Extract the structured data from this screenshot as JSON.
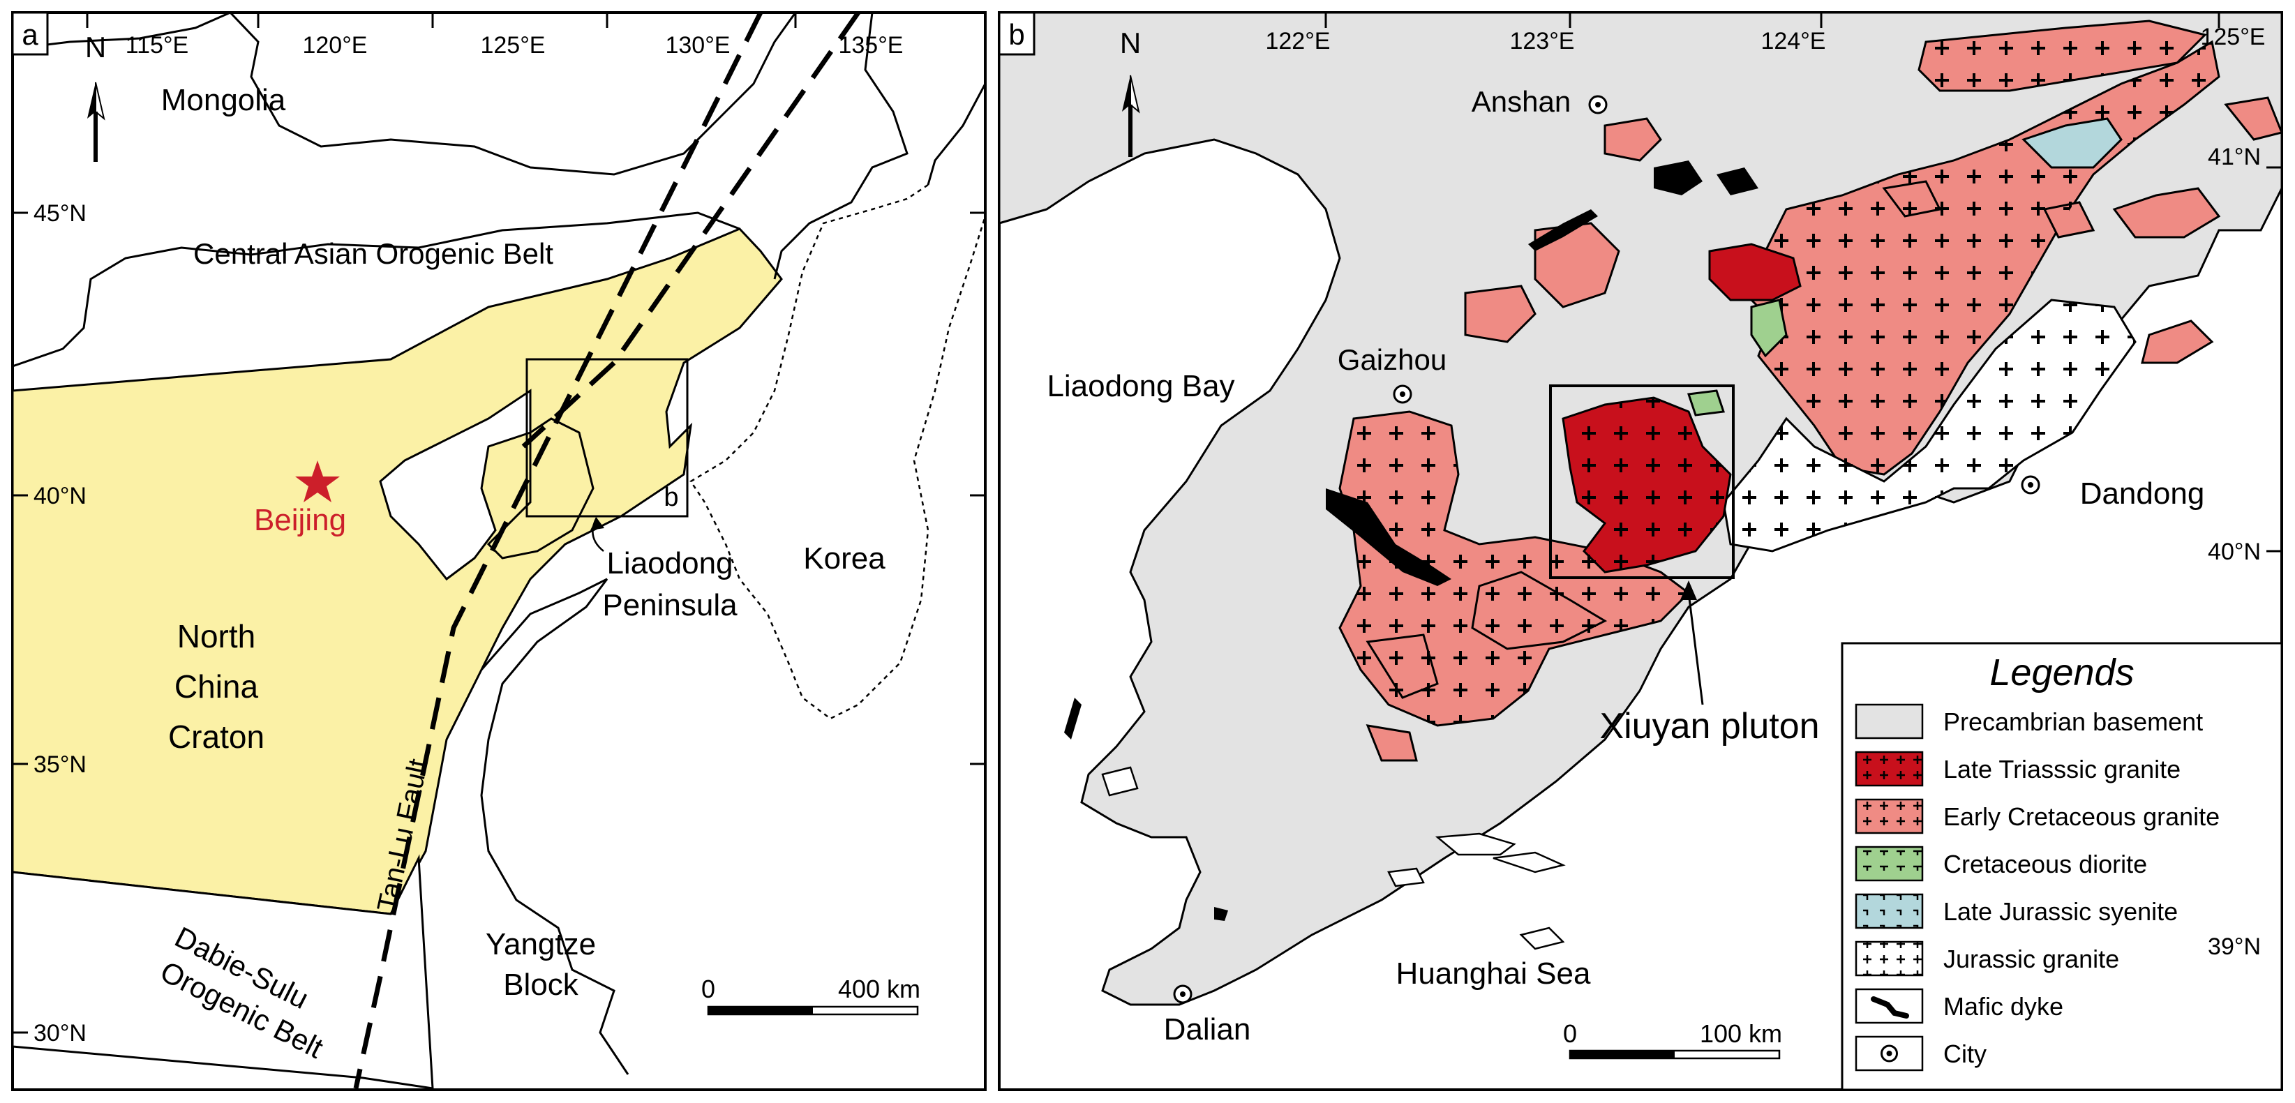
{
  "panel_a": {
    "letter": "a",
    "north": "N",
    "lon_labels": [
      "115°E",
      "120°E",
      "125°E",
      "130°E",
      "135°E"
    ],
    "lat_labels": [
      "45°N",
      "40°N",
      "35°N",
      "30°N"
    ],
    "regions": {
      "mongolia": "Mongolia",
      "caob": "Central Asian Orogenic Belt",
      "ncc_1": "North",
      "ncc_2": "China",
      "ncc_3": "Craton",
      "beijing": "Beijing",
      "liaodong_1": "Liaodong",
      "liaodong_2": "Peninsula",
      "korea": "Korea",
      "tanlu": "Tan-Lu Fault",
      "dabie_1": "Dabie-Sulu",
      "dabie_2": "Orogenic Belt",
      "yangtze_1": "Yangtze",
      "yangtze_2": "Block",
      "inset_box": "b"
    },
    "scale": {
      "start": "0",
      "end": "400 km"
    },
    "colors": {
      "ncc_fill": "#fbf1a6",
      "beijing_star": "#cc1f2a"
    }
  },
  "panel_b": {
    "letter": "b",
    "north": "N",
    "lon_labels": [
      "122°E",
      "123°E",
      "124°E",
      "125°E"
    ],
    "lat_labels": [
      "41°N",
      "40°N",
      "39°N"
    ],
    "places": {
      "anshan": "Anshan",
      "gaizhou": "Gaizhou",
      "dandong": "Dandong",
      "dalian": "Dalian",
      "liaodong_bay": "Liaodong Bay",
      "huanghai": "Huanghai Sea",
      "xiuyan": "Xiuyan pluton"
    },
    "scale": {
      "start": "0",
      "end": "100 km"
    },
    "legend": {
      "title": "Legends",
      "items": [
        {
          "label": "Precambrian basement",
          "color": "#e3e3e3",
          "pattern": "none"
        },
        {
          "label": "Late Triasssic granite",
          "color": "#c8101c",
          "pattern": "plus"
        },
        {
          "label": "Early Cretaceous granite",
          "color": "#ef8b84",
          "pattern": "plus"
        },
        {
          "label": "Cretaceous diorite",
          "color": "#9fd08f",
          "pattern": "tick"
        },
        {
          "label": "Late Jurassic syenite",
          "color": "#b3d7dc",
          "pattern": "hook"
        },
        {
          "label": "Jurassic granite",
          "color": "#ffffff",
          "pattern": "plus"
        },
        {
          "label": "Mafic dyke",
          "color": "#000000",
          "pattern": "dyke"
        },
        {
          "label": "City",
          "color": "#ffffff",
          "pattern": "city"
        }
      ]
    }
  }
}
